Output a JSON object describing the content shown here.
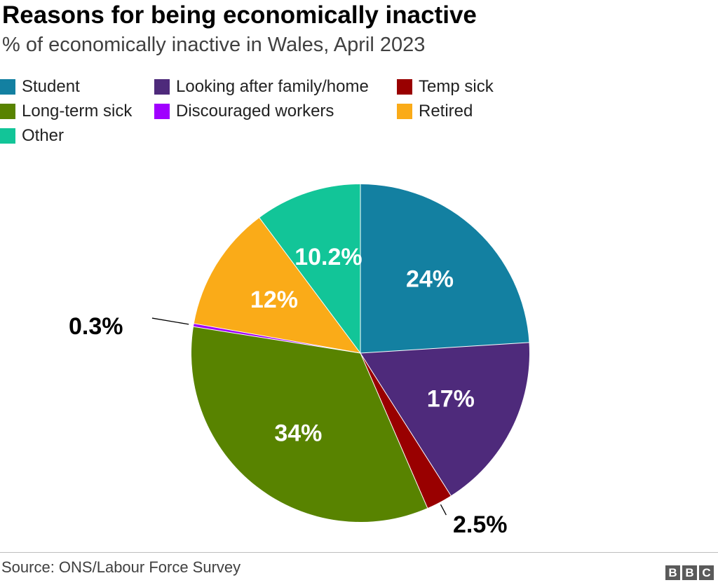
{
  "title": "Reasons for being economically inactive",
  "subtitle": "% of economically inactive in Wales, April 2023",
  "source": "Source: ONS/Labour Force Survey",
  "logo": [
    "B",
    "B",
    "C"
  ],
  "chart_data": {
    "type": "pie",
    "title": "Reasons for being economically inactive",
    "subtitle": "% of economically inactive in Wales, April 2023",
    "legend_position": "top-left",
    "slices": [
      {
        "name": "Student",
        "value": 24,
        "label": "24%",
        "color": "#1380A1",
        "label_inside": true
      },
      {
        "name": "Looking after family/home",
        "value": 17,
        "label": "17%",
        "color": "#4E2A7B",
        "label_inside": true
      },
      {
        "name": "Temp sick",
        "value": 2.5,
        "label": "2.5%",
        "color": "#990000",
        "label_inside": false
      },
      {
        "name": "Long-term sick",
        "value": 34,
        "label": "34%",
        "color": "#588300",
        "label_inside": true
      },
      {
        "name": "Discouraged workers",
        "value": 0.3,
        "label": "0.3%",
        "color": "#A000FF",
        "label_inside": false
      },
      {
        "name": "Retired",
        "value": 12,
        "label": "12%",
        "color": "#FAAB18",
        "label_inside": true
      },
      {
        "name": "Other",
        "value": 10.2,
        "label": "10.2%",
        "color": "#12C598",
        "label_inside": true
      }
    ]
  }
}
